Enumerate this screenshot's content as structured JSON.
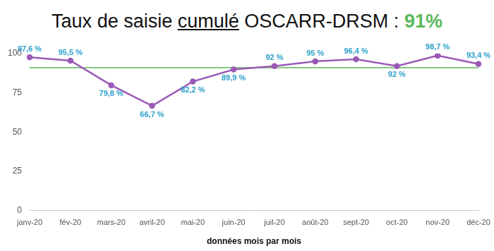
{
  "chart_data": {
    "type": "line",
    "title": "Taux de saisie cumulé OSCARR-DRSM : 91%",
    "x_label": "données mois par mois",
    "categories": [
      "janv-20",
      "fév-20",
      "mars-20",
      "avril-20",
      "mai-20",
      "juin-20",
      "juil-20",
      "août-20",
      "sept-20",
      "oct-20",
      "nov-20",
      "déc-20"
    ],
    "values": [
      97.6,
      95.5,
      79.8,
      66.7,
      82.2,
      89.9,
      92,
      95,
      96.4,
      92,
      98.7,
      93.4
    ],
    "value_labels": [
      "97,6 %",
      "95,5 %",
      "79,8 %",
      "66,7 %",
      "82,2 %",
      "89,9 %",
      "92 %",
      "95 %",
      "96,4 %",
      "92 %",
      "98,7 %",
      "93,4 %"
    ],
    "color": "#9b59b6",
    "reference": {
      "value": 91,
      "color": "#5cb85c"
    },
    "ylim": [
      0,
      100
    ],
    "yticks": [
      0,
      25,
      50,
      75,
      100
    ],
    "grid": false,
    "data_labels": true,
    "marker": "circle"
  }
}
